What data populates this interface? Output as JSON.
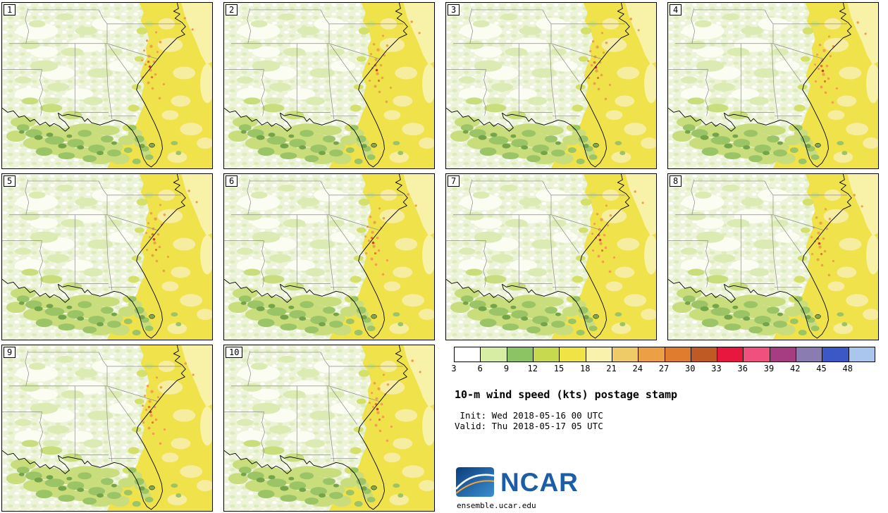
{
  "figure": {
    "title": "10-m wind speed (kts) postage stamp",
    "init_line": " Init: Wed 2018-05-16 00 UTC",
    "valid_line": "Valid: Thu 2018-05-17 05 UTC",
    "logo_text": "NCAR",
    "footer_url": "ensemble.ucar.edu",
    "logo_color": "#1c5da8"
  },
  "panels": [
    {
      "label": "1"
    },
    {
      "label": "2"
    },
    {
      "label": "3"
    },
    {
      "label": "4"
    },
    {
      "label": "5"
    },
    {
      "label": "6"
    },
    {
      "label": "7"
    },
    {
      "label": "8"
    },
    {
      "label": "9"
    },
    {
      "label": "10"
    }
  ],
  "legend": {
    "unit": "kts",
    "values": [
      "3",
      "6",
      "9",
      "12",
      "15",
      "18",
      "21",
      "24",
      "27",
      "30",
      "33",
      "36",
      "39",
      "42",
      "45",
      "48"
    ],
    "colors": [
      "#ffffff",
      "#d6eda3",
      "#8cc463",
      "#c6d94f",
      "#f0e345",
      "#f8f2ad",
      "#eecb66",
      "#eca045",
      "#e07c2e",
      "#c05a24",
      "#e8173d",
      "#f0507e",
      "#a63d82",
      "#8a7bb0",
      "#3c58c6",
      "#aac6ec"
    ]
  }
}
